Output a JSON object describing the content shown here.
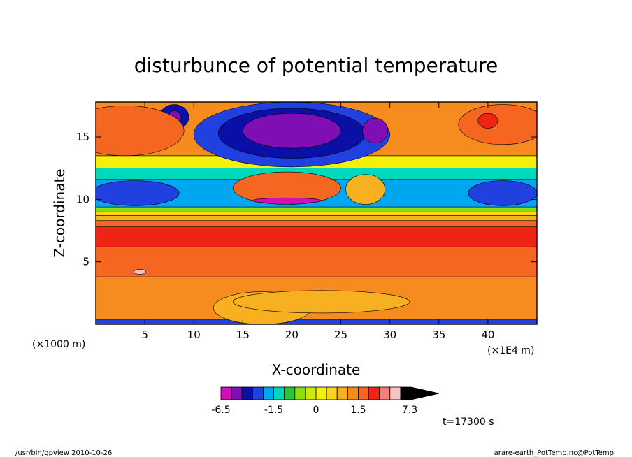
{
  "chart_data": {
    "type": "heatmap",
    "title": "disturbunce of potential temperature",
    "xlabel": "X-coordinate",
    "ylabel": "Z-coordinate",
    "x_unit_left": "(×1000 m)",
    "x_unit_right": "(×1E4 m)",
    "xlim": [
      0,
      45
    ],
    "ylim": [
      0,
      17.8
    ],
    "xticks": [
      5,
      10,
      15,
      20,
      25,
      30,
      35,
      40
    ],
    "yticks": [
      5,
      10,
      15
    ],
    "colorbar": {
      "levels": [
        -6.5,
        -5.5,
        -4.5,
        -3.5,
        -2.5,
        -1.5,
        -1.1,
        -0.7,
        -0.3,
        0,
        0.3,
        0.7,
        1.1,
        1.5,
        2.5,
        3.5,
        4.5,
        5.5,
        7.3
      ],
      "colors": [
        "#d211b4",
        "#7f0fb4",
        "#0a0fa5",
        "#2041e0",
        "#00a6f0",
        "#00d9b8",
        "#2cc63c",
        "#88e010",
        "#cdea0a",
        "#f4f00a",
        "#f9d41a",
        "#f7b020",
        "#f68c1e",
        "#f56620",
        "#f02414",
        "#f4807a",
        "#f9c2c2"
      ],
      "labels": [
        "-6.5",
        "-1.5",
        "0",
        "1.5",
        "7.3"
      ]
    },
    "bands": [
      {
        "z0": 0,
        "z1": 0.4,
        "value": -3.5
      },
      {
        "z0": 0.4,
        "z1": 3.8,
        "value": 1.3
      },
      {
        "z0": 3.8,
        "z1": 6.2,
        "value": 2.0
      },
      {
        "z0": 6.2,
        "z1": 7.8,
        "value": 3.0
      },
      {
        "z0": 7.8,
        "z1": 8.3,
        "value": 1.8
      },
      {
        "z0": 8.3,
        "z1": 8.7,
        "value": 0.9
      },
      {
        "z0": 8.7,
        "z1": 9.0,
        "value": 0.5
      },
      {
        "z0": 9.0,
        "z1": 9.4,
        "value": -0.5
      },
      {
        "z0": 9.4,
        "z1": 11.6,
        "value": -2.5
      },
      {
        "z0": 11.6,
        "z1": 12.5,
        "value": -1.3
      },
      {
        "z0": 12.5,
        "z1": 13.5,
        "value": 0.2
      },
      {
        "z0": 13.5,
        "z1": 17.8,
        "value": 1.3
      }
    ],
    "blobs": [
      {
        "x": 20,
        "z": 15.2,
        "rx": 10,
        "rz": 2.6,
        "value": -3.5
      },
      {
        "x": 20,
        "z": 15.3,
        "rx": 7.5,
        "rz": 2.0,
        "value": -4.5
      },
      {
        "x": 20,
        "z": 15.5,
        "rx": 5,
        "rz": 1.4,
        "value": -5.5
      },
      {
        "x": 8,
        "z": 16.6,
        "rx": 1.5,
        "rz": 1.0,
        "value": -4.5
      },
      {
        "x": 8,
        "z": 16.5,
        "rx": 0.7,
        "rz": 0.6,
        "value": -5.5
      },
      {
        "x": 28.5,
        "z": 15.5,
        "rx": 1.3,
        "rz": 1.0,
        "value": -5.5
      },
      {
        "x": 3,
        "z": 15.5,
        "rx": 6,
        "rz": 2.0,
        "value": 2.0
      },
      {
        "x": 41.5,
        "z": 16.0,
        "rx": 4.5,
        "rz": 1.6,
        "value": 2.0
      },
      {
        "x": 40,
        "z": 16.3,
        "rx": 1.0,
        "rz": 0.6,
        "value": 3.0
      },
      {
        "x": 4,
        "z": 10.5,
        "rx": 4.5,
        "rz": 1.0,
        "value": -3.5
      },
      {
        "x": 41.5,
        "z": 10.5,
        "rx": 3.5,
        "rz": 1.0,
        "value": -3.5
      },
      {
        "x": 19.5,
        "z": 10.9,
        "rx": 5.5,
        "rz": 1.3,
        "value": 2.0
      },
      {
        "x": 27.5,
        "z": 10.8,
        "rx": 2.0,
        "rz": 1.2,
        "value": 0.9
      },
      {
        "x": 19.5,
        "z": 9.9,
        "rx": 3.5,
        "rz": 0.22,
        "value": -6.5
      },
      {
        "x": 17,
        "z": 1.3,
        "rx": 5,
        "rz": 1.3,
        "value": 0.9
      },
      {
        "x": 23,
        "z": 1.8,
        "rx": 9,
        "rz": 0.9,
        "value": 0.9
      },
      {
        "x": 4.5,
        "z": 4.2,
        "rx": 0.6,
        "rz": 0.2,
        "value": 5.0
      }
    ]
  },
  "footer": {
    "time": "t=17300 s",
    "left": "/usr/bin/gpview  2010-10-26",
    "right": "arare-earth_PotTemp.nc@PotTemp"
  }
}
